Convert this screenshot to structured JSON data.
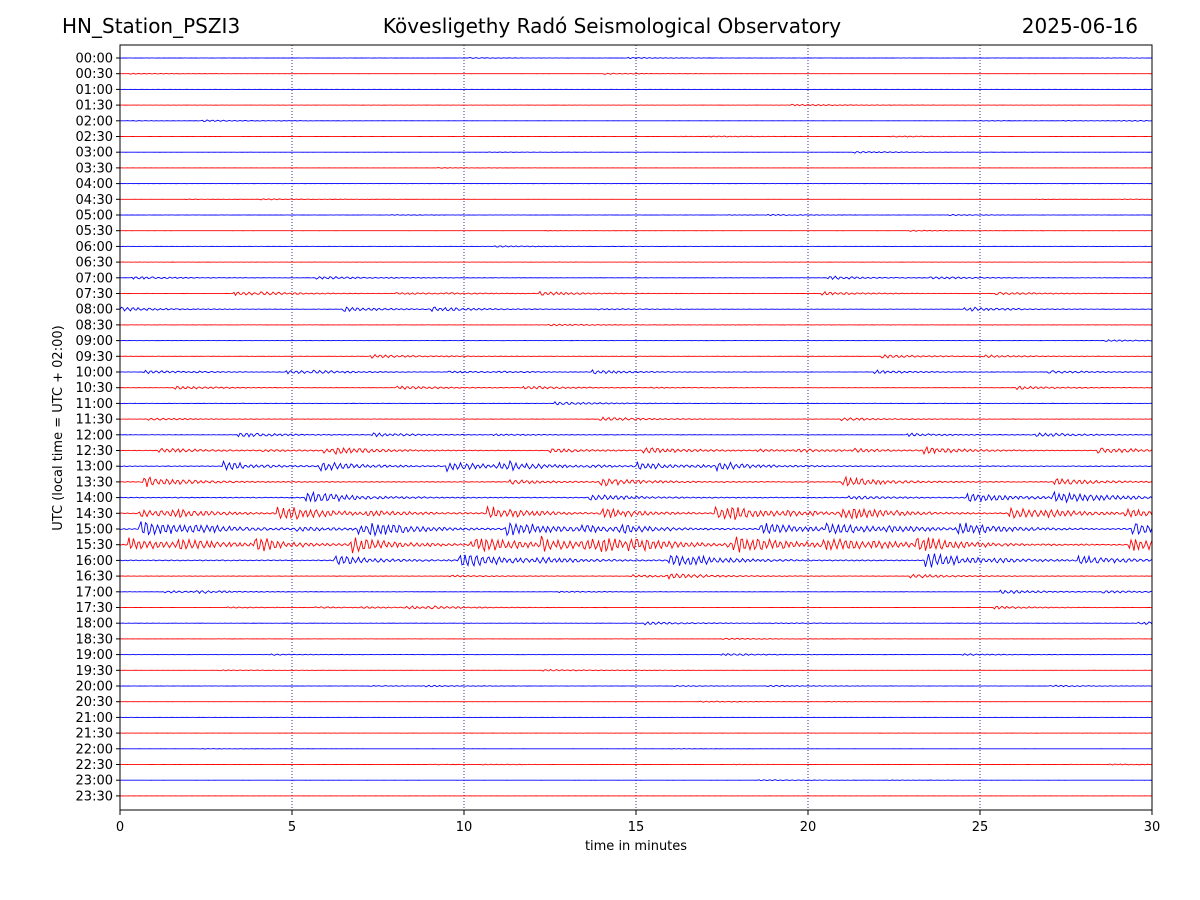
{
  "header": {
    "station": "HN_Station_PSZI3",
    "observatory": "Kövesligethy Radó Seismological Observatory",
    "date": "2025-06-16"
  },
  "chart_data": {
    "type": "line",
    "title": "Kövesligethy Radó Seismological Observatory",
    "xlabel": "time in minutes",
    "ylabel": "UTC (local time = UTC + 02:00)",
    "xlim": [
      0,
      30
    ],
    "x_ticks": [
      "0",
      "5",
      "10",
      "15",
      "20",
      "25",
      "30"
    ],
    "x_tick_values": [
      0,
      5,
      10,
      15,
      20,
      25,
      30
    ],
    "grid": "vertical dotted lines at each x tick",
    "colors": {
      "odd_trace": "#0000ff",
      "even_trace": "#ff0000",
      "grid": "#000080",
      "axis": "#000000"
    },
    "row_labels": [
      "00:00",
      "00:30",
      "01:00",
      "01:30",
      "02:00",
      "02:30",
      "03:00",
      "03:30",
      "04:00",
      "04:30",
      "05:00",
      "05:30",
      "06:00",
      "06:30",
      "07:00",
      "07:30",
      "08:00",
      "08:30",
      "09:00",
      "09:30",
      "10:00",
      "10:30",
      "11:00",
      "11:30",
      "12:00",
      "12:30",
      "13:00",
      "13:30",
      "14:00",
      "14:30",
      "15:00",
      "15:30",
      "16:00",
      "16:30",
      "17:00",
      "17:30",
      "18:00",
      "18:30",
      "19:00",
      "19:30",
      "20:00",
      "20:30",
      "21:00",
      "21:30",
      "22:00",
      "22:30",
      "23:00",
      "23:30"
    ],
    "row_colors": [
      "blue",
      "red",
      "blue",
      "red",
      "blue",
      "red",
      "blue",
      "red",
      "blue",
      "red",
      "blue",
      "red",
      "blue",
      "red",
      "blue",
      "red",
      "blue",
      "red",
      "blue",
      "red",
      "blue",
      "red",
      "blue",
      "red",
      "blue",
      "red",
      "blue",
      "red",
      "blue",
      "red",
      "blue",
      "red",
      "blue",
      "red",
      "blue",
      "red",
      "blue",
      "red",
      "blue",
      "red",
      "blue",
      "red",
      "blue",
      "red",
      "blue",
      "red",
      "blue",
      "red"
    ],
    "row_activity": [
      0.1,
      0.1,
      0.12,
      0.15,
      0.12,
      0.12,
      0.15,
      0.1,
      0.1,
      0.1,
      0.12,
      0.1,
      0.2,
      0.2,
      0.25,
      0.3,
      0.35,
      0.25,
      0.25,
      0.25,
      0.3,
      0.3,
      0.35,
      0.35,
      0.4,
      0.6,
      0.75,
      0.8,
      0.9,
      1.0,
      1.2,
      1.25,
      1.1,
      0.45,
      0.3,
      0.25,
      0.25,
      0.2,
      0.2,
      0.15,
      0.15,
      0.12,
      0.15,
      0.12,
      0.1,
      0.1,
      0.1,
      0.1
    ]
  }
}
